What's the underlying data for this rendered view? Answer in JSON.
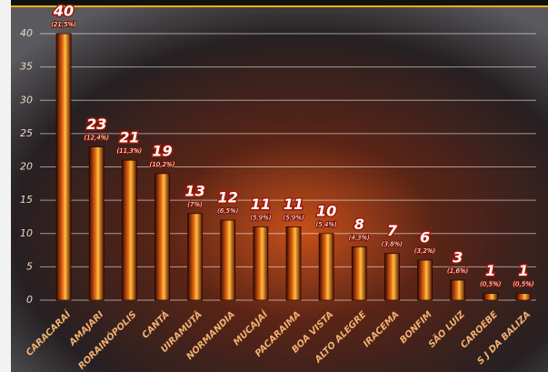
{
  "chart_data": {
    "type": "bar",
    "categories": [
      "CARACARAÍ",
      "AMAJARI",
      "RORAINÓPOLIS",
      "CANTÁ",
      "UIRAMUTÃ",
      "NORMANDIA",
      "MUCAJAÍ",
      "PACARAIMA",
      "BOA VISTA",
      "ALTO ALEGRE",
      "IRACEMA",
      "BONFIM",
      "SÃO LUIZ",
      "CAROEBE",
      "S J DA BALIZA"
    ],
    "values": [
      40,
      23,
      21,
      19,
      13,
      12,
      11,
      11,
      10,
      8,
      7,
      6,
      3,
      1,
      1
    ],
    "percent_labels": [
      "(21,5%)",
      "(12,4%)",
      "(11,3%)",
      "(10,2%)",
      "(7%)",
      "(6,5%)",
      "(5,9%)",
      "(5,9%)",
      "(5,4%)",
      "(4,3%)",
      "(3,8%)",
      "(3,2%)",
      "(1,6%)",
      "(0,5%)",
      "(0,5%)"
    ],
    "color": "#e06010",
    "ylim": [
      0,
      40
    ],
    "yticks": [
      0,
      5,
      10,
      15,
      20,
      25,
      30,
      35,
      40
    ],
    "grid": true
  }
}
